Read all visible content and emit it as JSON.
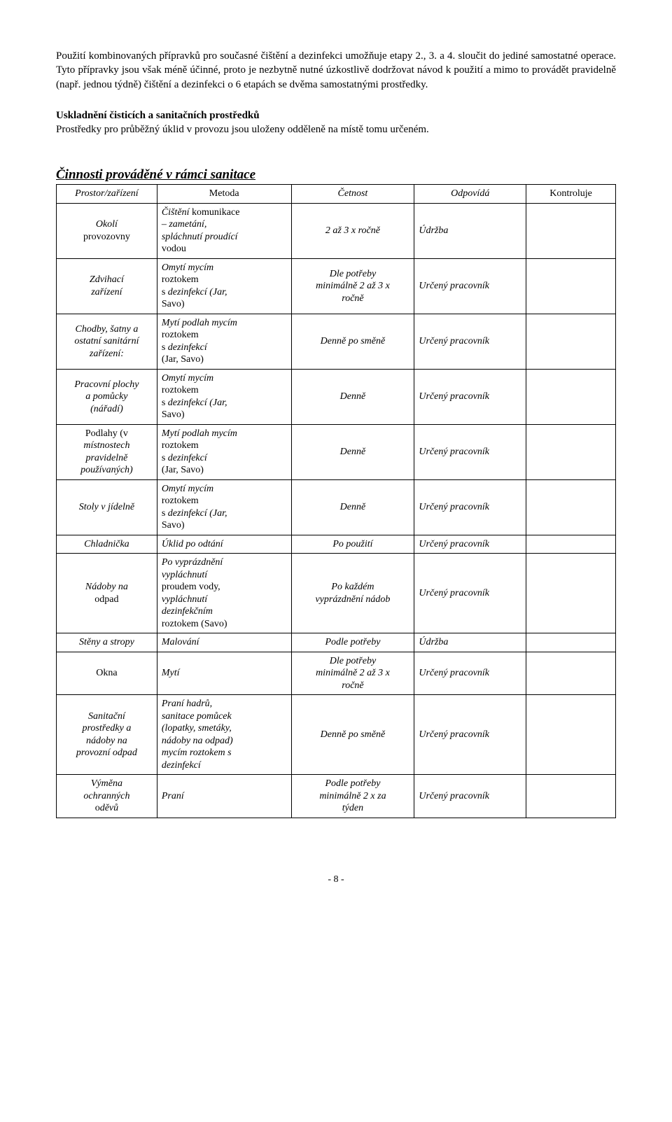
{
  "paragraphs": {
    "p1": "Použití kombinovaných přípravků pro současné čištění a dezinfekci umožňuje etapy 2., 3. a 4. sloučit do jediné samostatné operace. Tyto přípravky jsou však méně účinné, proto je nezbytně nutné úzkostlivě dodržovat návod k použití a mimo to provádět pravidelně (např. jednou týdně) čištění a dezinfekci o 6 etapách se dvěma samostatnými prostředky.",
    "p2_title": "Uskladnění čisticích a sanitačních prostředků",
    "p2_body": "Prostředky pro průběžný úklid v provozu jsou uloženy odděleně na místě tomu určeném."
  },
  "table_heading": "Činnosti prováděné v rámci sanitace",
  "columns": {
    "c1": "Prostor/zařízení",
    "c2": "Metoda",
    "c3": "Četnost",
    "c4": "Odpovídá",
    "c5": "Kontroluje"
  },
  "rows": [
    {
      "prostor_html": "<span>Okolí</span><br><span class=\"reg\">provozovny</span>",
      "metoda_html": "<span class=\"hdr-italic\">Čištění</span> komunikace<br><span class=\"hdr-italic\">– zametání,<br>spláchnutí proudící</span><br>vodou",
      "cetnost": "2 až 3 x ročně",
      "odpovida": "Údržba",
      "kontroluje": ""
    },
    {
      "prostor_html": "<span>Zdvihací<br>zařízení</span>",
      "metoda_html": "<span class=\"hdr-italic\">Omytí mycím</span><br>roztokem<br>s <span class=\"hdr-italic\">dezinfekcí (Jar,</span><br>Savo)",
      "cetnost": "Dle potřeby<br>minimálně 2 až 3 x<br>ročně",
      "odpovida": "Určený pracovník",
      "kontroluje": ""
    },
    {
      "prostor_html": "<span>Chodby, šatny a<br>ostatní sanitární<br>zařízení:</span>",
      "metoda_html": "<span class=\"hdr-italic\">Mytí podlah mycím</span><br>roztokem<br>s <span class=\"hdr-italic\">dezinfekcí</span><br>(Jar, Savo)",
      "cetnost": "Denně po směně",
      "odpovida": "Určený pracovník",
      "kontroluje": ""
    },
    {
      "prostor_html": "<span>Pracovní plochy<br>a pomůcky<br>(nářadí)</span>",
      "metoda_html": "<span class=\"hdr-italic\">Omytí mycím</span><br>roztokem<br>s <span class=\"hdr-italic\">dezinfekcí (Jar,</span><br>Savo)",
      "cetnost": "Denně",
      "odpovida": "Určený pracovník",
      "kontroluje": ""
    },
    {
      "prostor_html": "<span class=\"reg\">Podlahy (v</span><br><span>místnostech<br>pravidelně<br>používaných)</span>",
      "metoda_html": "<span class=\"hdr-italic\">Mytí podlah mycím</span><br>roztokem<br>s <span class=\"hdr-italic\">dezinfekcí</span><br>(Jar, Savo)",
      "cetnost": "Denně",
      "odpovida": "Určený pracovník",
      "kontroluje": ""
    },
    {
      "prostor_html": "<span>Stoly v jídelně</span>",
      "metoda_html": "<span class=\"hdr-italic\">Omytí mycím</span><br>roztokem<br>s <span class=\"hdr-italic\">dezinfekcí (Jar,</span><br>Savo)",
      "cetnost": "Denně",
      "odpovida": "Určený pracovník",
      "kontroluje": ""
    },
    {
      "prostor_html": "<span>Chladnička</span>",
      "metoda_html": "<span class=\"hdr-italic\">Úklid po odtání</span>",
      "cetnost": "Po použití",
      "odpovida": "Určený pracovník",
      "kontroluje": ""
    },
    {
      "prostor_html": "<span>Nádoby na</span><br><span class=\"reg\">odpad</span>",
      "metoda_html": "<span class=\"hdr-italic\">Po vyprázdnění<br>vypláchnutí</span><br>proudem vody,<br><span class=\"hdr-italic\">vypláchnutí<br>dezinfekčním</span><br>roztokem (Savo)",
      "cetnost": "Po každém<br>vyprázdnění nádob",
      "odpovida": "Určený pracovník",
      "kontroluje": ""
    },
    {
      "prostor_html": "<span>Stěny a stropy</span>",
      "metoda_html": "<span class=\"hdr-italic\">Malování</span>",
      "cetnost": "Podle potřeby",
      "odpovida": "Údržba",
      "kontroluje": ""
    },
    {
      "prostor_html": "<span class=\"reg\">Okna</span>",
      "metoda_html": "<span class=\"hdr-italic\">Mytí</span>",
      "cetnost": "Dle potřeby<br>minimálně 2 až 3 x<br>ročně",
      "odpovida": "Určený pracovník",
      "kontroluje": ""
    },
    {
      "prostor_html": "<span>Sanitační<br>prostředky a<br>nádoby na<br>provozní odpad</span>",
      "metoda_html": "<span class=\"hdr-italic\">Praní hadrů,<br>sanitace pomůcek<br>(lopatky, smetáky,<br>nádoby na odpad)<br>mycím roztokem s<br>dezinfekcí</span>",
      "cetnost": "Denně po směně",
      "odpovida": "Určený pracovník",
      "kontroluje": ""
    },
    {
      "prostor_html": "<span>Výměna<br>ochranných</span><br><span class=\"reg\">o</span><span>děvů</span>",
      "metoda_html": "<span class=\"hdr-italic\">Praní</span>",
      "cetnost": "Podle potřeby<br>minimálně 2 x za<br>týden",
      "odpovida": "Určený pracovník",
      "kontroluje": ""
    }
  ],
  "footer": "- 8 -"
}
